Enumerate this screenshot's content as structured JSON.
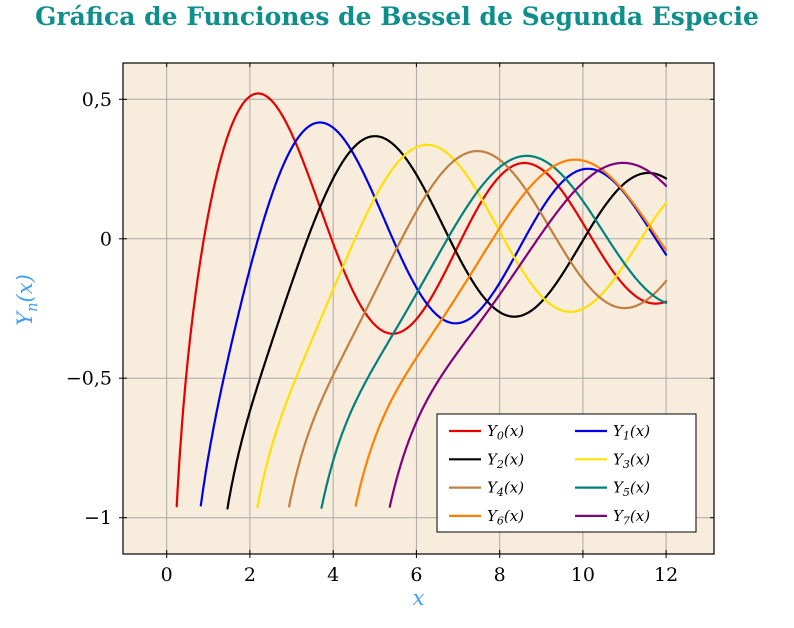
{
  "chart_data": {
    "type": "line",
    "title": "Gráfica de Funciones de Bessel de Segunda Especie",
    "xlabel": "x",
    "ylabel": "Yn(x)",
    "ylabel_parts": {
      "base": "Y",
      "sub": "n",
      "tail": "(x)"
    },
    "xlim": [
      -1.05,
      13.15
    ],
    "ylim": [
      -1.13,
      0.63
    ],
    "x_range": [
      0,
      12
    ],
    "x_ticks": [
      0,
      2,
      4,
      6,
      8,
      10,
      12
    ],
    "x_tick_labels": [
      "0",
      "2",
      "4",
      "6",
      "8",
      "10",
      "12"
    ],
    "y_ticks": [
      0.5,
      0,
      -0.5,
      -1
    ],
    "y_tick_labels": [
      "0,5",
      "0",
      "−0,5",
      "−1"
    ],
    "decimal_separator": ",",
    "grid": true,
    "legend_position": "bottom-right",
    "function_family": "Bessel functions of the second kind Y_n(x), orders 0 to 7",
    "colors": {
      "title": "#0e8f8c",
      "axis_label": "#41a1f0",
      "plot_bg": "#f8ecdc",
      "grid": "#a9a9a9",
      "axis": "#000000",
      "legend_bg": "#ffffff"
    },
    "sample_x": [
      1,
      2,
      3,
      4,
      5,
      6,
      7,
      8,
      9,
      10,
      11,
      12
    ],
    "samples_note": "approximate Y_n values at integer x; null = below plotted range",
    "series": [
      {
        "order": 0,
        "label": "Y0(x)",
        "label_base": "Y",
        "label_sub": "0",
        "label_tail": "(x)",
        "color": "#e60000",
        "samples_y": [
          0.088,
          0.51,
          0.377,
          -0.017,
          -0.309,
          -0.288,
          -0.026,
          0.224,
          0.25,
          0.056,
          -0.169,
          -0.225
        ]
      },
      {
        "order": 1,
        "label": "Y1(x)",
        "label_base": "Y",
        "label_sub": "1",
        "label_tail": "(x)",
        "color": "#0000e6",
        "samples_y": [
          -0.781,
          -0.107,
          0.325,
          0.398,
          0.148,
          -0.175,
          -0.303,
          -0.158,
          0.104,
          0.249,
          0.164,
          -0.057
        ]
      },
      {
        "order": 2,
        "label": "Y2(x)",
        "label_base": "Y",
        "label_sub": "2",
        "label_tail": "(x)",
        "color": "#000000",
        "samples_y": [
          null,
          -0.617,
          -0.16,
          0.216,
          0.368,
          0.23,
          -0.061,
          -0.263,
          -0.227,
          -0.006,
          0.199,
          0.216
        ]
      },
      {
        "order": 3,
        "label": "Y3(x)",
        "label_base": "Y",
        "label_sub": "3",
        "label_tail": "(x)",
        "color": "#ffe000",
        "samples_y": [
          null,
          null,
          -0.539,
          -0.182,
          0.146,
          0.328,
          0.268,
          0.027,
          -0.205,
          -0.251,
          -0.091,
          0.129
        ]
      },
      {
        "order": 4,
        "label": "Y4(x)",
        "label_base": "Y",
        "label_sub": "4",
        "label_tail": "(x)",
        "color": "#bf8040",
        "samples_y": [
          null,
          null,
          -0.917,
          -0.489,
          -0.192,
          0.098,
          0.29,
          0.283,
          0.09,
          -0.145,
          -0.249,
          -0.151
        ]
      },
      {
        "order": 5,
        "label": "Y5(x)",
        "label_base": "Y",
        "label_sub": "5",
        "label_tail": "(x)",
        "color": "#008080",
        "samples_y": [
          null,
          null,
          null,
          -0.796,
          -0.454,
          -0.197,
          0.064,
          0.256,
          0.285,
          0.135,
          -0.089,
          -0.23
        ]
      },
      {
        "order": 6,
        "label": "Y6(x)",
        "label_base": "Y",
        "label_sub": "6",
        "label_tail": "(x)",
        "color": "#ff8000",
        "samples_y": [
          null,
          null,
          null,
          null,
          -0.715,
          -0.427,
          -0.199,
          0.038,
          0.227,
          0.28,
          0.167,
          -0.04
        ]
      },
      {
        "order": 7,
        "label": "Y7(x)",
        "label_base": "Y",
        "label_sub": "7",
        "label_tail": "(x)",
        "color": "#800080",
        "samples_y": [
          null,
          null,
          null,
          null,
          null,
          -0.657,
          -0.405,
          -0.2,
          0.017,
          0.201,
          0.272,
          0.19
        ]
      }
    ]
  }
}
